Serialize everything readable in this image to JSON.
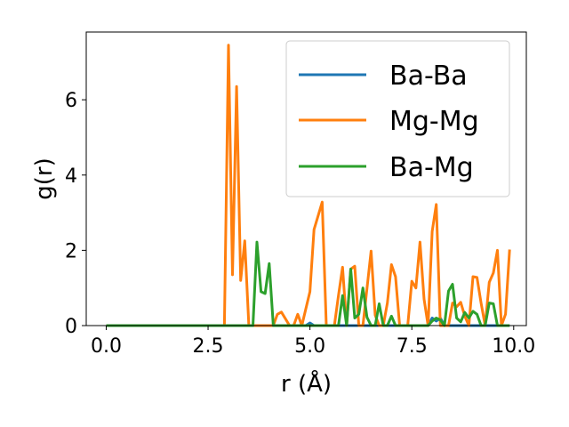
{
  "chart_data": {
    "type": "line",
    "xlabel": "r (Å)",
    "ylabel": "g(r)",
    "xlim": [
      -0.49,
      10.31
    ],
    "ylim": [
      0,
      7.8
    ],
    "xticks": [
      0.0,
      2.5,
      5.0,
      7.5,
      10.0
    ],
    "xtick_labels": [
      "0.0",
      "2.5",
      "5.0",
      "7.5",
      "10.0"
    ],
    "yticks": [
      0,
      2,
      4,
      6
    ],
    "ytick_labels": [
      "0",
      "2",
      "4",
      "6"
    ],
    "grid": false,
    "legend_position": "top-right",
    "series": [
      {
        "name": "Ba-Ba",
        "color": "#1f77b4",
        "x": [
          0,
          0.5,
          1,
          1.5,
          2,
          2.5,
          3,
          3.5,
          4,
          4.5,
          4.9,
          5.0,
          5.1,
          5.5,
          6.0,
          7.5,
          7.9,
          8.0,
          8.1,
          8.2,
          8.3,
          8.5,
          9.0,
          9.9
        ],
        "y": [
          0,
          0,
          0,
          0,
          0,
          0,
          0,
          0,
          0,
          0,
          0,
          0.07,
          0,
          0,
          0,
          0,
          0,
          0.2,
          0.12,
          0.2,
          0,
          0,
          0,
          0
        ]
      },
      {
        "name": "Mg-Mg",
        "color": "#ff7f0e",
        "x": [
          0,
          0.5,
          1,
          1.5,
          2,
          2.5,
          2.9,
          3.0,
          3.1,
          3.2,
          3.3,
          3.4,
          3.5,
          3.6,
          3.9,
          4.1,
          4.2,
          4.3,
          4.5,
          4.6,
          4.7,
          4.8,
          5.0,
          5.1,
          5.3,
          5.4,
          5.6,
          5.7,
          5.8,
          5.9,
          6.0,
          6.1,
          6.2,
          6.3,
          6.5,
          6.6,
          6.7,
          6.8,
          6.9,
          7.0,
          7.1,
          7.2,
          7.3,
          7.4,
          7.5,
          7.6,
          7.7,
          7.8,
          7.9,
          8.0,
          8.1,
          8.2,
          8.3,
          8.4,
          8.5,
          8.6,
          8.7,
          8.8,
          8.9,
          9.0,
          9.1,
          9.2,
          9.3,
          9.4,
          9.5,
          9.6,
          9.7,
          9.8,
          9.9
        ],
        "y": [
          0,
          0,
          0,
          0,
          0,
          0,
          0,
          7.45,
          1.35,
          6.35,
          1.2,
          2.25,
          0,
          0,
          0,
          0,
          0.3,
          0.36,
          0,
          0,
          0.3,
          0,
          0.9,
          2.55,
          3.28,
          0,
          0,
          0.8,
          1.55,
          0,
          1.5,
          1.58,
          0,
          0,
          1.98,
          0.28,
          0,
          0,
          0.6,
          1.62,
          1.3,
          0,
          0,
          0,
          1.18,
          1.0,
          2.22,
          0.7,
          0,
          2.5,
          3.22,
          0,
          0,
          0,
          0.6,
          0.5,
          0.62,
          0.25,
          0,
          1.3,
          1.28,
          0.6,
          0,
          1.15,
          1.4,
          2.0,
          0,
          0.3,
          2.02
        ]
      },
      {
        "name": "Ba-Mg",
        "color": "#2ca02c",
        "x": [
          0,
          0.5,
          1,
          1.5,
          2,
          2.5,
          3,
          3.5,
          3.6,
          3.7,
          3.8,
          3.9,
          4.0,
          4.1,
          5.5,
          5.7,
          5.8,
          5.9,
          6.0,
          6.1,
          6.2,
          6.3,
          6.4,
          6.5,
          6.6,
          6.7,
          6.8,
          6.9,
          7.0,
          7.1,
          7.2,
          7.8,
          7.9,
          8.0,
          8.1,
          8.2,
          8.3,
          8.4,
          8.5,
          8.6,
          8.7,
          8.8,
          8.9,
          9.0,
          9.1,
          9.2,
          9.3,
          9.4,
          9.5,
          9.6,
          9.7,
          9.8,
          9.9
        ],
        "y": [
          0,
          0,
          0,
          0,
          0,
          0,
          0,
          0,
          0,
          2.22,
          0.9,
          0.85,
          1.65,
          0,
          0,
          0,
          0.8,
          0,
          1.5,
          0.2,
          0.3,
          1.0,
          0.22,
          0,
          0,
          0.58,
          0,
          0,
          0.25,
          0,
          0,
          0,
          0,
          0.12,
          0.2,
          0.15,
          0,
          0.92,
          1.1,
          0.2,
          0.1,
          0.35,
          0.2,
          0.38,
          0.3,
          0,
          0,
          0.6,
          0.58,
          0,
          0,
          0,
          0
        ]
      }
    ]
  }
}
